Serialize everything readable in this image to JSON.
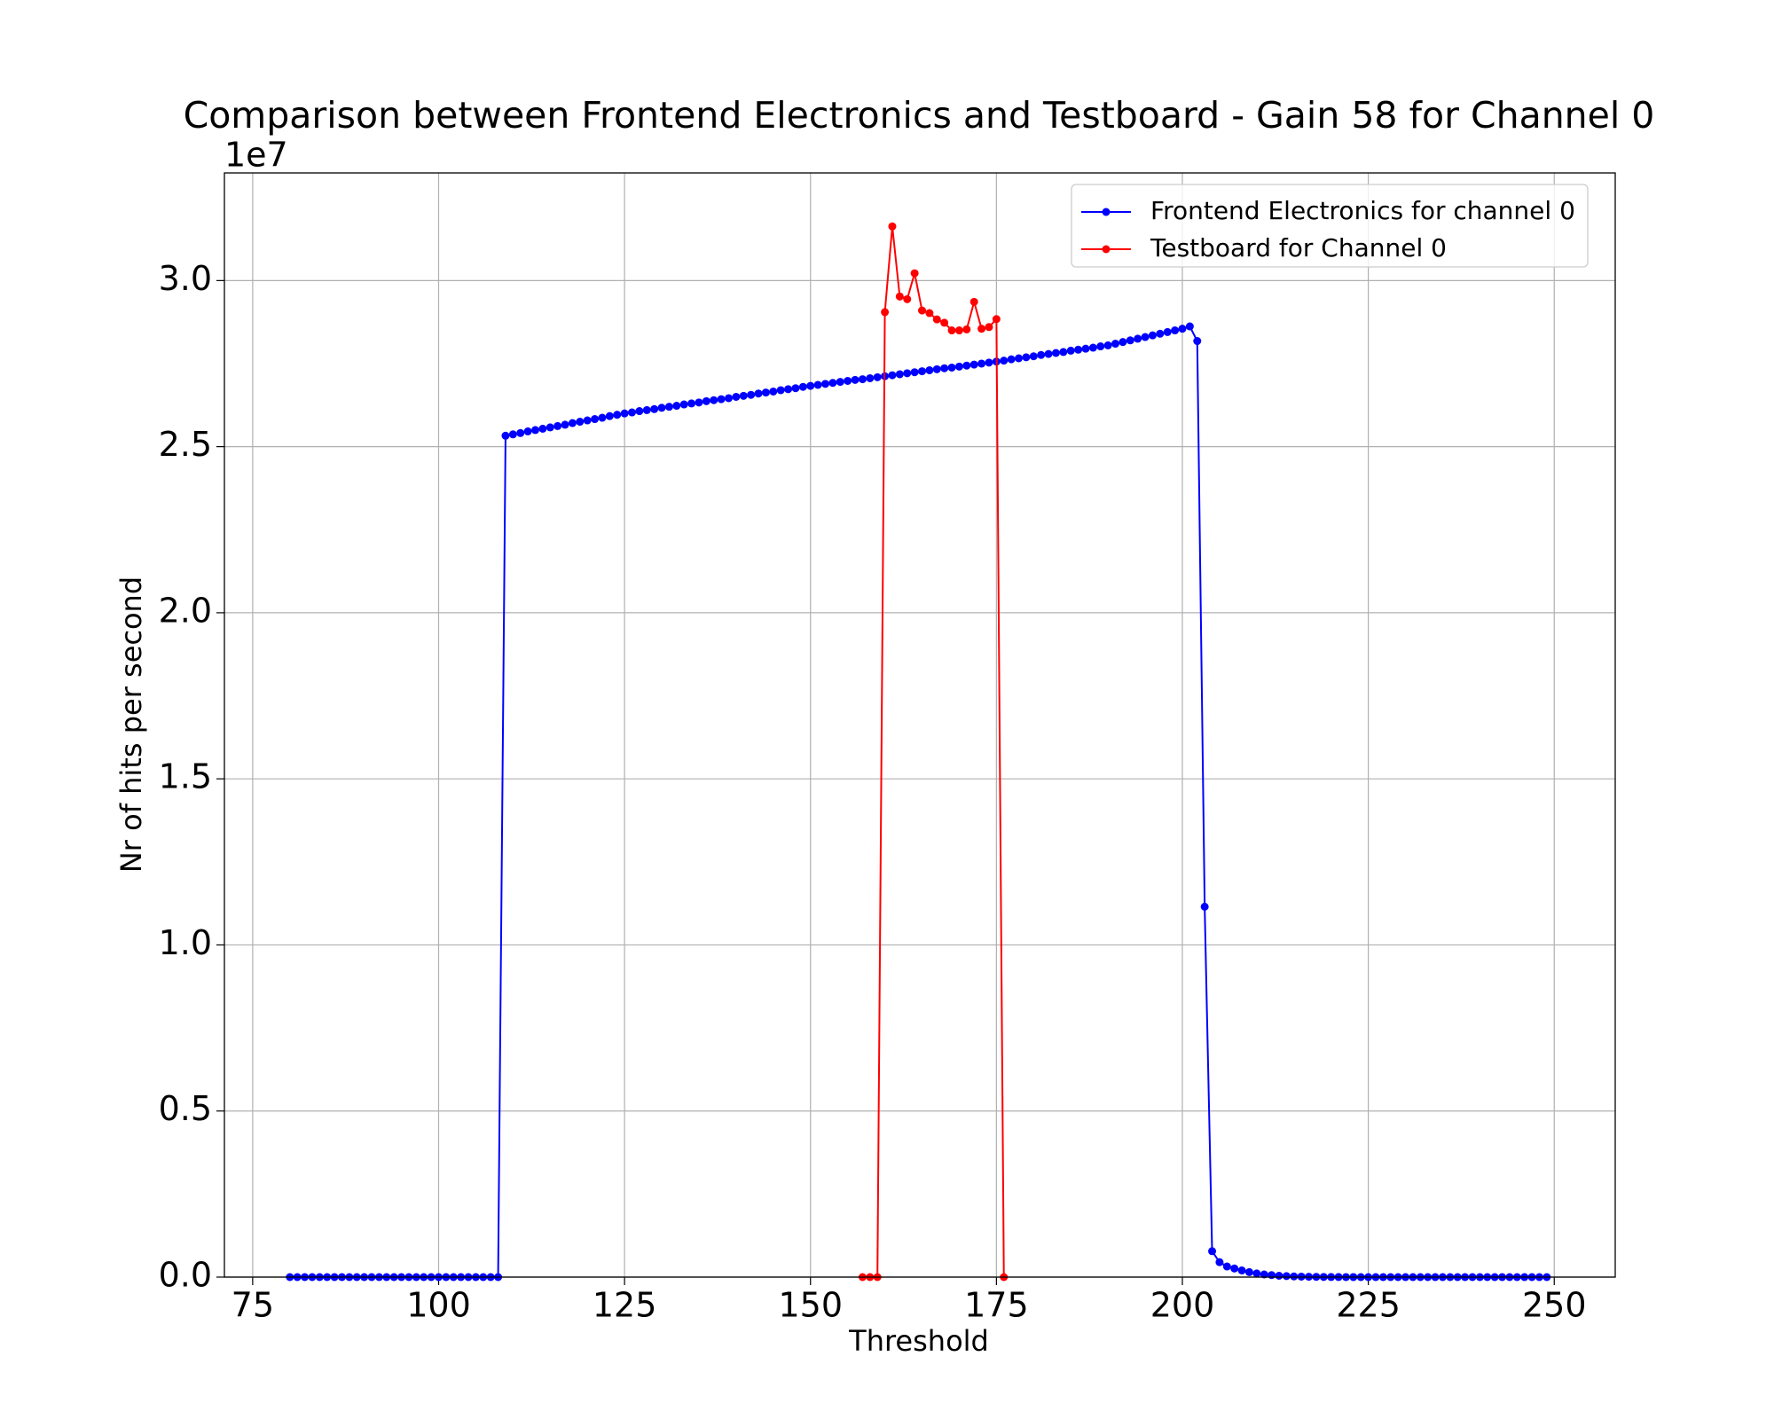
{
  "chart_data": {
    "type": "line",
    "title": "Comparison between Frontend Electronics and Testboard - Gain 58 for Channel 0",
    "x_label": "Threshold",
    "y_label": "Nr of hits per second",
    "y_offset_label": "1e7",
    "xlim": [
      71.2,
      258.2
    ],
    "ylim": [
      0,
      33240000
    ],
    "xticks": [
      75,
      100,
      125,
      150,
      175,
      200,
      225,
      250
    ],
    "yticks": [
      {
        "value": 0,
        "label": "0.0"
      },
      {
        "value": 5000000,
        "label": "0.5"
      },
      {
        "value": 10000000,
        "label": "1.0"
      },
      {
        "value": 15000000,
        "label": "1.5"
      },
      {
        "value": 20000000,
        "label": "2.0"
      },
      {
        "value": 25000000,
        "label": "2.5"
      },
      {
        "value": 30000000,
        "label": "3.0"
      }
    ],
    "grid": true,
    "legend": "upper right",
    "series": [
      {
        "name": "Frontend Electronics for channel 0",
        "color": "#0000ff",
        "x": [
          80,
          81,
          82,
          83,
          84,
          85,
          86,
          87,
          88,
          89,
          90,
          91,
          92,
          93,
          94,
          95,
          96,
          97,
          98,
          99,
          100,
          101,
          102,
          103,
          104,
          105,
          106,
          107,
          108,
          109,
          110,
          111,
          112,
          113,
          114,
          115,
          116,
          117,
          118,
          119,
          120,
          121,
          122,
          123,
          124,
          125,
          126,
          127,
          128,
          129,
          130,
          131,
          132,
          133,
          134,
          135,
          136,
          137,
          138,
          139,
          140,
          141,
          142,
          143,
          144,
          145,
          146,
          147,
          148,
          149,
          150,
          151,
          152,
          153,
          154,
          155,
          156,
          157,
          158,
          159,
          160,
          161,
          162,
          163,
          164,
          165,
          166,
          167,
          168,
          169,
          170,
          171,
          172,
          173,
          174,
          175,
          176,
          177,
          178,
          179,
          180,
          181,
          182,
          183,
          184,
          185,
          186,
          187,
          188,
          189,
          190,
          191,
          192,
          193,
          194,
          195,
          196,
          197,
          198,
          199,
          200,
          201,
          202,
          203,
          204,
          205,
          206,
          207,
          208,
          209,
          210,
          211,
          212,
          213,
          214,
          215,
          216,
          217,
          218,
          219,
          220,
          221,
          222,
          223,
          224,
          225,
          226,
          227,
          228,
          229,
          230,
          231,
          232,
          233,
          234,
          235,
          236,
          237,
          238,
          239,
          240,
          241,
          242,
          243,
          244,
          245,
          246,
          247,
          248,
          249
        ],
        "values": [
          0,
          0,
          0,
          0,
          0,
          0,
          0,
          0,
          0,
          0,
          0,
          0,
          0,
          0,
          0,
          0,
          0,
          0,
          0,
          0,
          0,
          0,
          0,
          0,
          0,
          0,
          0,
          0,
          0,
          25330000,
          25370000,
          25410000,
          25460000,
          25500000,
          25540000,
          25580000,
          25620000,
          25660000,
          25710000,
          25750000,
          25790000,
          25830000,
          25870000,
          25920000,
          25960000,
          26000000,
          26030000,
          26070000,
          26100000,
          26130000,
          26170000,
          26200000,
          26230000,
          26270000,
          26300000,
          26330000,
          26370000,
          26400000,
          26430000,
          26460000,
          26500000,
          26530000,
          26560000,
          26600000,
          26630000,
          26660000,
          26700000,
          26730000,
          26760000,
          26800000,
          26830000,
          26860000,
          26890000,
          26920000,
          26950000,
          26980000,
          27010000,
          27030000,
          27060000,
          27090000,
          27120000,
          27150000,
          27180000,
          27210000,
          27240000,
          27270000,
          27300000,
          27330000,
          27360000,
          27380000,
          27410000,
          27440000,
          27470000,
          27500000,
          27530000,
          27560000,
          27590000,
          27630000,
          27660000,
          27690000,
          27720000,
          27760000,
          27790000,
          27820000,
          27850000,
          27890000,
          27920000,
          27950000,
          27980000,
          28020000,
          28050000,
          28100000,
          28150000,
          28200000,
          28250000,
          28300000,
          28350000,
          28400000,
          28450000,
          28500000,
          28550000,
          28620000,
          28180000,
          11150000,
          780000,
          450000,
          320000,
          260000,
          200000,
          150000,
          110000,
          80000,
          60000,
          40000,
          30000,
          20000,
          15000,
          10000,
          7000,
          5000,
          3000,
          2000,
          1000,
          1000,
          0,
          0,
          0,
          0,
          0,
          0,
          0,
          0,
          0,
          0,
          0,
          0,
          0,
          0,
          0,
          0,
          0,
          0,
          0,
          0,
          0,
          0,
          0,
          0,
          0,
          0
        ]
      },
      {
        "name": "Testboard for Channel 0",
        "color": "#ff0000",
        "x": [
          157,
          158,
          159,
          160,
          161,
          162,
          163,
          164,
          165,
          166,
          167,
          168,
          169,
          170,
          171,
          172,
          173,
          174,
          175,
          176
        ],
        "values": [
          0,
          0,
          0,
          29050000,
          31630000,
          29520000,
          29440000,
          30220000,
          29100000,
          29020000,
          28830000,
          28730000,
          28500000,
          28500000,
          28530000,
          29360000,
          28550000,
          28600000,
          28840000,
          0
        ]
      }
    ]
  }
}
